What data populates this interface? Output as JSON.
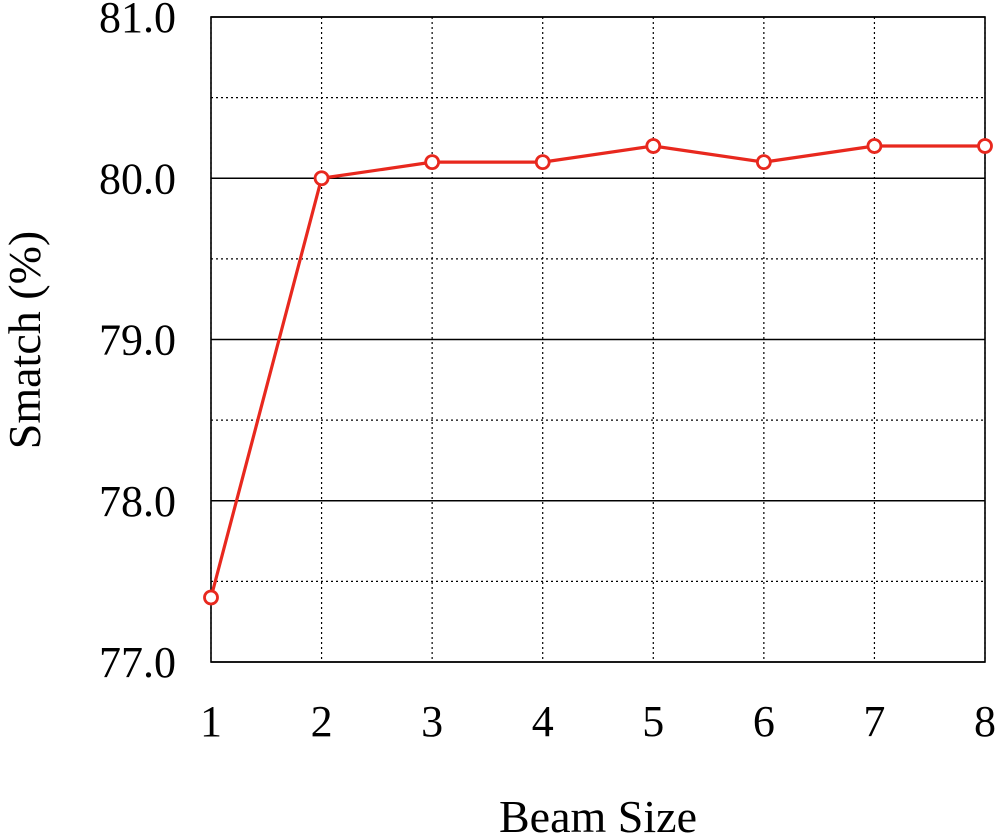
{
  "chart_data": {
    "type": "line",
    "title": "",
    "xlabel": "Beam Size",
    "ylabel": "Smatch (%)",
    "x": [
      1,
      2,
      3,
      4,
      5,
      6,
      7,
      8
    ],
    "xticks": [
      "1",
      "2",
      "3",
      "4",
      "5",
      "6",
      "7",
      "8"
    ],
    "yticks": [
      "77.0",
      "78.0",
      "79.0",
      "80.0",
      "81.0"
    ],
    "ylim": [
      77.0,
      81.0
    ],
    "xlim": [
      1,
      8
    ],
    "grid": true,
    "series": [
      {
        "values": [
          77.4,
          80.0,
          80.1,
          80.1,
          80.2,
          80.1,
          80.2,
          80.2
        ],
        "color": "#e8281e",
        "marker": "open-circle"
      }
    ]
  }
}
